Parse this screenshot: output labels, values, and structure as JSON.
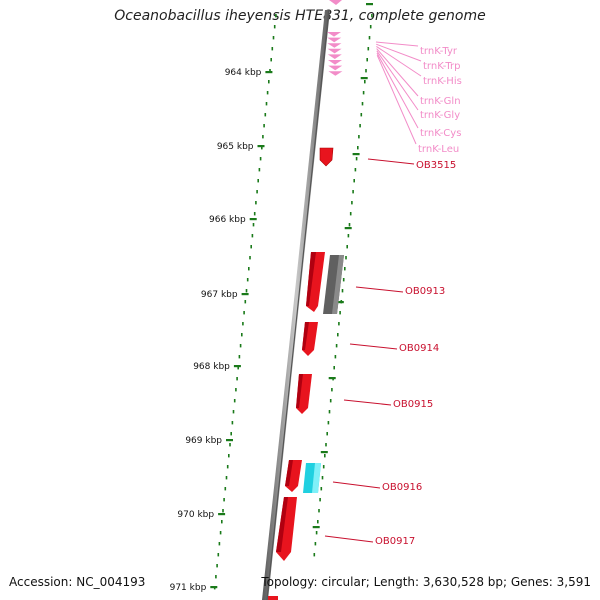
{
  "title": "Oceanobacillus iheyensis HTE831, complete genome",
  "footer": {
    "accession": "Accession: NC_004193",
    "topology": "Topology: circular; Length: 3,630,528 bp; Genes: 3,591"
  },
  "colors": {
    "backbone": "#808080",
    "tick": "#1a7a1a",
    "cds": "#e8141e",
    "pseudo": "#606060",
    "rna": "#20d0e0",
    "trna": "#f28cc8",
    "gene_label": "#c8102e"
  },
  "kbp_ticks": [
    "964 kbp",
    "965 kbp",
    "966 kbp",
    "967 kbp",
    "968 kbp",
    "969 kbp",
    "970 kbp",
    "971 kbp"
  ],
  "trna_labels": [
    "trnK-Tyr",
    "trnK-Trp",
    "trnK-His",
    "trnK-Gln",
    "trnK-Gly",
    "trnK-Cys",
    "trnK-Leu"
  ],
  "gene_labels": [
    "OB3515",
    "OB0913",
    "OB0914",
    "OB0915",
    "OB0916",
    "OB0917"
  ]
}
